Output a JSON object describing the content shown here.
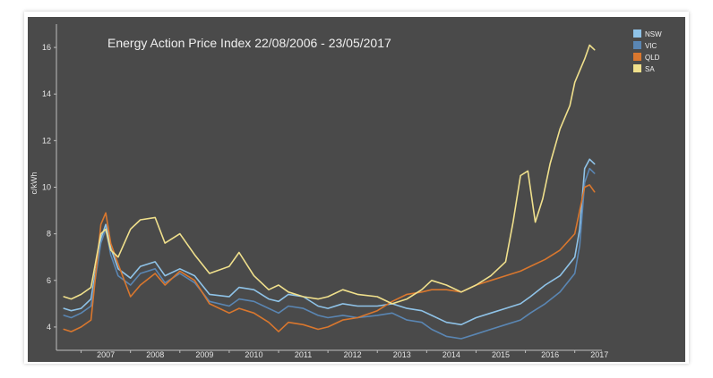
{
  "chart_data": {
    "type": "line",
    "title": "Energy Action Price Index 22/08/2006 - 23/05/2017",
    "ylabel": "c/kWh",
    "xlabel": "",
    "ylim": [
      3,
      17
    ],
    "xlim": [
      2006.5,
      2017.55
    ],
    "yticks": [
      "4",
      "6",
      "8",
      "10",
      "12",
      "14",
      "16"
    ],
    "xticks": [
      "2007",
      "2008",
      "2009",
      "2010",
      "2011",
      "2012",
      "2013",
      "2014",
      "2015",
      "2016",
      "2017"
    ],
    "grid": false,
    "legend_position": "top-right",
    "series": [
      {
        "name": "NSW",
        "color": "#8fc3e8",
        "x": [
          2006.65,
          2006.8,
          2007.0,
          2007.2,
          2007.4,
          2007.5,
          2007.6,
          2007.75,
          2008.0,
          2008.2,
          2008.5,
          2008.7,
          2009.0,
          2009.3,
          2009.6,
          2010.0,
          2010.2,
          2010.5,
          2010.8,
          2011.0,
          2011.2,
          2011.5,
          2011.8,
          2012.0,
          2012.3,
          2012.6,
          2013.0,
          2013.3,
          2013.6,
          2013.9,
          2014.1,
          2014.4,
          2014.7,
          2015.0,
          2015.3,
          2015.6,
          2015.9,
          2016.1,
          2016.4,
          2016.7,
          2017.0,
          2017.1,
          2017.2,
          2017.3,
          2017.4
        ],
        "values": [
          4.8,
          4.7,
          4.8,
          5.2,
          7.8,
          8.4,
          7.4,
          6.5,
          6.1,
          6.6,
          6.8,
          6.2,
          6.5,
          6.2,
          5.4,
          5.3,
          5.7,
          5.6,
          5.2,
          5.1,
          5.4,
          5.3,
          4.9,
          4.8,
          5.0,
          4.9,
          4.9,
          5.0,
          4.8,
          4.7,
          4.5,
          4.2,
          4.1,
          4.4,
          4.6,
          4.8,
          5.0,
          5.3,
          5.8,
          6.2,
          7.0,
          8.2,
          10.8,
          11.2,
          11.0
        ]
      },
      {
        "name": "VIC",
        "color": "#5a86b3",
        "x": [
          2006.65,
          2006.8,
          2007.0,
          2007.2,
          2007.4,
          2007.5,
          2007.6,
          2007.75,
          2008.0,
          2008.2,
          2008.5,
          2008.7,
          2009.0,
          2009.3,
          2009.6,
          2010.0,
          2010.2,
          2010.5,
          2010.8,
          2011.0,
          2011.2,
          2011.5,
          2011.8,
          2012.0,
          2012.3,
          2012.6,
          2013.0,
          2013.3,
          2013.6,
          2013.9,
          2014.1,
          2014.4,
          2014.7,
          2015.0,
          2015.3,
          2015.6,
          2015.9,
          2016.1,
          2016.4,
          2016.7,
          2017.0,
          2017.1,
          2017.2,
          2017.3,
          2017.4
        ],
        "values": [
          4.5,
          4.4,
          4.6,
          4.9,
          7.6,
          8.2,
          7.1,
          6.2,
          5.8,
          6.3,
          6.5,
          5.9,
          6.3,
          5.9,
          5.1,
          4.9,
          5.2,
          5.1,
          4.8,
          4.6,
          4.9,
          4.8,
          4.5,
          4.4,
          4.5,
          4.4,
          4.5,
          4.6,
          4.3,
          4.2,
          3.9,
          3.6,
          3.5,
          3.7,
          3.9,
          4.1,
          4.3,
          4.6,
          5.0,
          5.5,
          6.3,
          7.5,
          10.2,
          10.8,
          10.6
        ]
      },
      {
        "name": "QLD",
        "color": "#d9772e",
        "x": [
          2006.65,
          2006.8,
          2007.0,
          2007.2,
          2007.4,
          2007.5,
          2007.6,
          2007.75,
          2008.0,
          2008.2,
          2008.5,
          2008.7,
          2009.0,
          2009.3,
          2009.6,
          2010.0,
          2010.2,
          2010.5,
          2010.8,
          2011.0,
          2011.2,
          2011.5,
          2011.8,
          2012.0,
          2012.3,
          2012.6,
          2013.0,
          2013.3,
          2013.6,
          2013.9,
          2014.1,
          2014.4,
          2014.7,
          2015.0,
          2015.3,
          2015.6,
          2015.9,
          2016.1,
          2016.4,
          2016.7,
          2017.0,
          2017.1,
          2017.2,
          2017.3,
          2017.4
        ],
        "values": [
          3.9,
          3.8,
          4.0,
          4.3,
          8.4,
          8.9,
          7.6,
          6.7,
          5.3,
          5.8,
          6.3,
          5.8,
          6.4,
          6.0,
          5.0,
          4.6,
          4.8,
          4.6,
          4.2,
          3.8,
          4.2,
          4.1,
          3.9,
          4.0,
          4.3,
          4.4,
          4.7,
          5.1,
          5.4,
          5.5,
          5.6,
          5.6,
          5.5,
          5.8,
          6.0,
          6.2,
          6.4,
          6.6,
          6.9,
          7.3,
          8.0,
          9.0,
          10.0,
          10.1,
          9.8
        ]
      },
      {
        "name": "SA",
        "color": "#f0e08c",
        "x": [
          2006.65,
          2006.8,
          2007.0,
          2007.2,
          2007.4,
          2007.5,
          2007.6,
          2007.75,
          2008.0,
          2008.2,
          2008.5,
          2008.7,
          2009.0,
          2009.3,
          2009.6,
          2010.0,
          2010.2,
          2010.5,
          2010.8,
          2011.0,
          2011.2,
          2011.5,
          2011.8,
          2012.0,
          2012.3,
          2012.6,
          2013.0,
          2013.3,
          2013.6,
          2013.9,
          2014.1,
          2014.4,
          2014.7,
          2015.0,
          2015.3,
          2015.6,
          2015.75,
          2015.9,
          2016.05,
          2016.2,
          2016.35,
          2016.5,
          2016.7,
          2016.9,
          2017.0,
          2017.1,
          2017.2,
          2017.3,
          2017.4
        ],
        "values": [
          5.3,
          5.2,
          5.4,
          5.7,
          8.0,
          8.2,
          7.3,
          7.0,
          8.2,
          8.6,
          8.7,
          7.6,
          8.0,
          7.1,
          6.3,
          6.6,
          7.2,
          6.2,
          5.6,
          5.8,
          5.5,
          5.3,
          5.2,
          5.3,
          5.6,
          5.4,
          5.3,
          5.0,
          5.2,
          5.6,
          6.0,
          5.8,
          5.5,
          5.8,
          6.2,
          6.8,
          8.5,
          10.5,
          10.7,
          8.5,
          9.5,
          11.0,
          12.5,
          13.5,
          14.5,
          15.0,
          15.5,
          16.1,
          15.9
        ]
      }
    ]
  }
}
